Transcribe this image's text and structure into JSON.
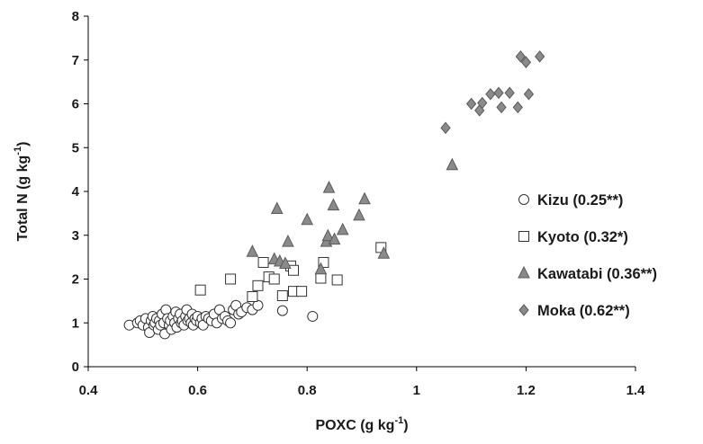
{
  "chart_data": {
    "type": "scatter",
    "title": "",
    "xlabel": {
      "main": "POXC (g kg",
      "sup": "-1",
      "end": ")"
    },
    "ylabel": {
      "main": "Total N  (g kg",
      "sup": "-1",
      "end": ")"
    },
    "xlim": [
      0.4,
      1.4
    ],
    "ylim": [
      0,
      8
    ],
    "xticks": [
      0.4,
      0.6,
      0.8,
      1.0,
      1.2,
      1.4
    ],
    "xtick_labels": [
      "0.4",
      "0.6",
      "0.8",
      "1",
      "1.2",
      "1.4"
    ],
    "yticks": [
      0,
      1,
      2,
      3,
      4,
      5,
      6,
      7,
      8
    ],
    "ytick_labels": [
      "0",
      "1",
      "2",
      "3",
      "4",
      "5",
      "6",
      "7",
      "8"
    ],
    "grid": false,
    "legend_position": "right",
    "series": [
      {
        "name": "Kizu (0.25**)",
        "marker": "circle",
        "color": "#ffffff",
        "edge": "#333333",
        "points": [
          [
            0.475,
            0.95
          ],
          [
            0.49,
            1.0
          ],
          [
            0.495,
            1.05
          ],
          [
            0.5,
            0.95
          ],
          [
            0.505,
            1.1
          ],
          [
            0.51,
            0.9
          ],
          [
            0.512,
            0.78
          ],
          [
            0.515,
            1.05
          ],
          [
            0.518,
            1.15
          ],
          [
            0.52,
            0.95
          ],
          [
            0.522,
            1.0
          ],
          [
            0.525,
            1.1
          ],
          [
            0.528,
            0.85
          ],
          [
            0.53,
            1.05
          ],
          [
            0.532,
            0.95
          ],
          [
            0.535,
            1.2
          ],
          [
            0.538,
            1.0
          ],
          [
            0.54,
            0.75
          ],
          [
            0.542,
            1.3
          ],
          [
            0.545,
            1.1
          ],
          [
            0.548,
            0.95
          ],
          [
            0.55,
            1.05
          ],
          [
            0.552,
            0.85
          ],
          [
            0.555,
            1.15
          ],
          [
            0.558,
            1.0
          ],
          [
            0.56,
            1.25
          ],
          [
            0.562,
            0.9
          ],
          [
            0.565,
            1.1
          ],
          [
            0.568,
            1.2
          ],
          [
            0.57,
            1.0
          ],
          [
            0.572,
            1.05
          ],
          [
            0.575,
            0.95
          ],
          [
            0.578,
            1.15
          ],
          [
            0.58,
            1.3
          ],
          [
            0.582,
            1.05
          ],
          [
            0.585,
            1.1
          ],
          [
            0.588,
            1.0
          ],
          [
            0.59,
            1.2
          ],
          [
            0.592,
            0.95
          ],
          [
            0.595,
            1.1
          ],
          [
            0.598,
            1.05
          ],
          [
            0.6,
            1.15
          ],
          [
            0.605,
            1.0
          ],
          [
            0.608,
            1.1
          ],
          [
            0.61,
            0.95
          ],
          [
            0.615,
            1.15
          ],
          [
            0.62,
            1.1
          ],
          [
            0.625,
            1.05
          ],
          [
            0.63,
            1.2
          ],
          [
            0.635,
            1.0
          ],
          [
            0.64,
            1.3
          ],
          [
            0.645,
            1.1
          ],
          [
            0.65,
            1.15
          ],
          [
            0.655,
            1.05
          ],
          [
            0.66,
            1.0
          ],
          [
            0.665,
            1.3
          ],
          [
            0.67,
            1.4
          ],
          [
            0.675,
            1.2
          ],
          [
            0.68,
            1.25
          ],
          [
            0.69,
            1.35
          ],
          [
            0.7,
            1.3
          ],
          [
            0.71,
            1.4
          ],
          [
            0.755,
            1.28
          ],
          [
            0.81,
            1.15
          ]
        ]
      },
      {
        "name": "Kyoto (0.32*)",
        "marker": "square",
        "color": "#ffffff",
        "edge": "#333333",
        "points": [
          [
            0.605,
            1.75
          ],
          [
            0.66,
            2.0
          ],
          [
            0.7,
            1.6
          ],
          [
            0.71,
            1.85
          ],
          [
            0.72,
            2.38
          ],
          [
            0.73,
            2.05
          ],
          [
            0.74,
            2.0
          ],
          [
            0.755,
            1.62
          ],
          [
            0.77,
            2.3
          ],
          [
            0.775,
            1.72
          ],
          [
            0.775,
            2.2
          ],
          [
            0.79,
            1.72
          ],
          [
            0.825,
            2.02
          ],
          [
            0.83,
            2.38
          ],
          [
            0.855,
            1.98
          ],
          [
            0.935,
            2.72
          ]
        ]
      },
      {
        "name": "Kawatabi (0.36**)",
        "marker": "triangle",
        "color": "#8a8a8a",
        "edge": "#5a5a5a",
        "points": [
          [
            0.7,
            2.62
          ],
          [
            0.74,
            2.45
          ],
          [
            0.745,
            3.6
          ],
          [
            0.75,
            2.4
          ],
          [
            0.76,
            2.35
          ],
          [
            0.765,
            2.85
          ],
          [
            0.8,
            3.35
          ],
          [
            0.825,
            2.22
          ],
          [
            0.835,
            2.85
          ],
          [
            0.838,
            2.98
          ],
          [
            0.84,
            4.08
          ],
          [
            0.848,
            3.68
          ],
          [
            0.85,
            2.9
          ],
          [
            0.865,
            3.12
          ],
          [
            0.895,
            3.45
          ],
          [
            0.905,
            3.82
          ],
          [
            0.94,
            2.58
          ],
          [
            1.065,
            4.6
          ]
        ]
      },
      {
        "name": "Moka (0.62**)",
        "marker": "diamond",
        "color": "#8a8a8a",
        "edge": "#5a5a5a",
        "points": [
          [
            1.053,
            5.45
          ],
          [
            1.1,
            6.0
          ],
          [
            1.115,
            5.85
          ],
          [
            1.12,
            6.02
          ],
          [
            1.135,
            6.22
          ],
          [
            1.15,
            6.25
          ],
          [
            1.155,
            5.92
          ],
          [
            1.17,
            6.25
          ],
          [
            1.185,
            5.92
          ],
          [
            1.19,
            7.08
          ],
          [
            1.2,
            6.95
          ],
          [
            1.205,
            6.22
          ],
          [
            1.225,
            7.08
          ]
        ]
      }
    ]
  }
}
